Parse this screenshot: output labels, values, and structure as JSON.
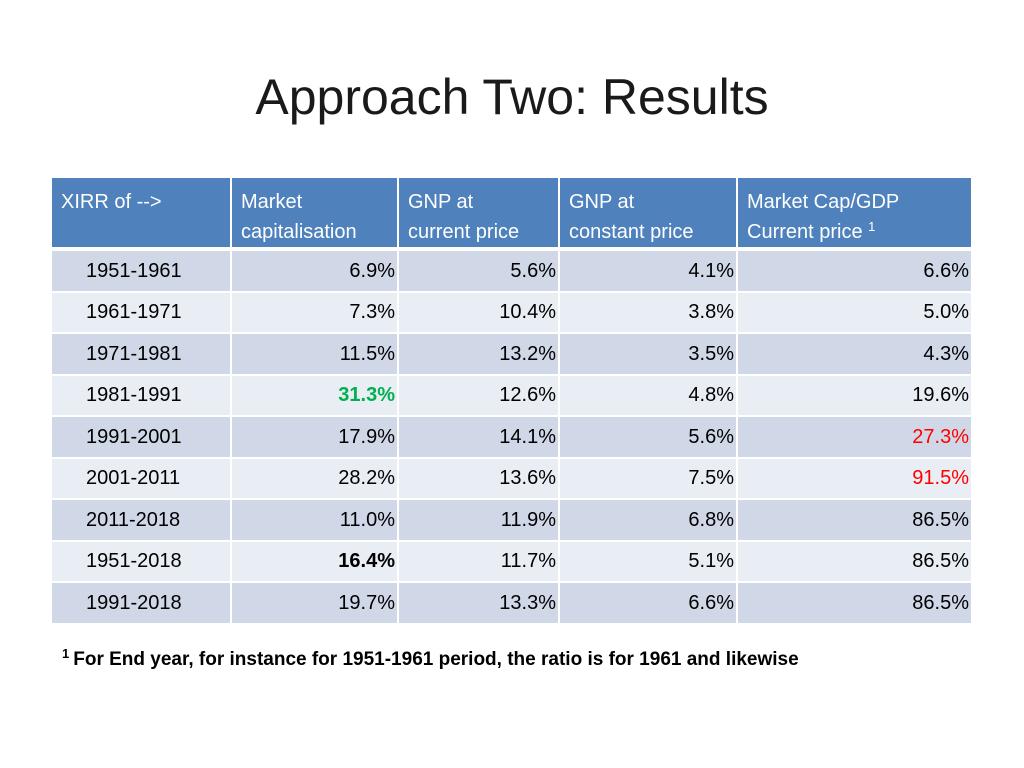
{
  "title": "Approach Two: Results",
  "table": {
    "headers": [
      {
        "line1": "XIRR of -->",
        "line2": "",
        "sup": ""
      },
      {
        "line1": "Market",
        "line2": "capitalisation",
        "sup": ""
      },
      {
        "line1": "GNP at",
        "line2": "current price",
        "sup": ""
      },
      {
        "line1": "GNP at",
        "line2": "constant price",
        "sup": ""
      },
      {
        "line1": "Market Cap/GDP",
        "line2": "Current price",
        "sup": "1"
      }
    ],
    "rows": [
      {
        "period": "1951-1961",
        "market_cap": "6.9%",
        "gnp_current": "5.6%",
        "gnp_constant": "4.1%",
        "mcap_gdp": "6.6%"
      },
      {
        "period": "1961-1971",
        "market_cap": "7.3%",
        "gnp_current": "10.4%",
        "gnp_constant": "3.8%",
        "mcap_gdp": "5.0%"
      },
      {
        "period": "1971-1981",
        "market_cap": "11.5%",
        "gnp_current": "13.2%",
        "gnp_constant": "3.5%",
        "mcap_gdp": "4.3%"
      },
      {
        "period": "1981-1991",
        "market_cap": "31.3%",
        "gnp_current": "12.6%",
        "gnp_constant": "4.8%",
        "mcap_gdp": "19.6%"
      },
      {
        "period": "1991-2001",
        "market_cap": "17.9%",
        "gnp_current": "14.1%",
        "gnp_constant": "5.6%",
        "mcap_gdp": "27.3%"
      },
      {
        "period": "2001-2011",
        "market_cap": "28.2%",
        "gnp_current": "13.6%",
        "gnp_constant": "7.5%",
        "mcap_gdp": "91.5%"
      },
      {
        "period": "2011-2018",
        "market_cap": "11.0%",
        "gnp_current": "11.9%",
        "gnp_constant": "6.8%",
        "mcap_gdp": "86.5%"
      },
      {
        "period": "1951-2018",
        "market_cap": "16.4%",
        "gnp_current": "11.7%",
        "gnp_constant": "5.1%",
        "mcap_gdp": "86.5%"
      },
      {
        "period": "1991-2018",
        "market_cap": "19.7%",
        "gnp_current": "13.3%",
        "gnp_constant": "6.6%",
        "mcap_gdp": "86.5%"
      }
    ]
  },
  "footnote": {
    "marker": "1",
    "text": "For End year, for instance for 1951-1961 period, the ratio is for 1961 and likewise"
  },
  "colors": {
    "header_bg": "#4f81bd",
    "row_odd": "#d0d8e8",
    "row_even": "#e9edf4",
    "highlight_green": "#00b050",
    "highlight_red": "#ff0000"
  }
}
